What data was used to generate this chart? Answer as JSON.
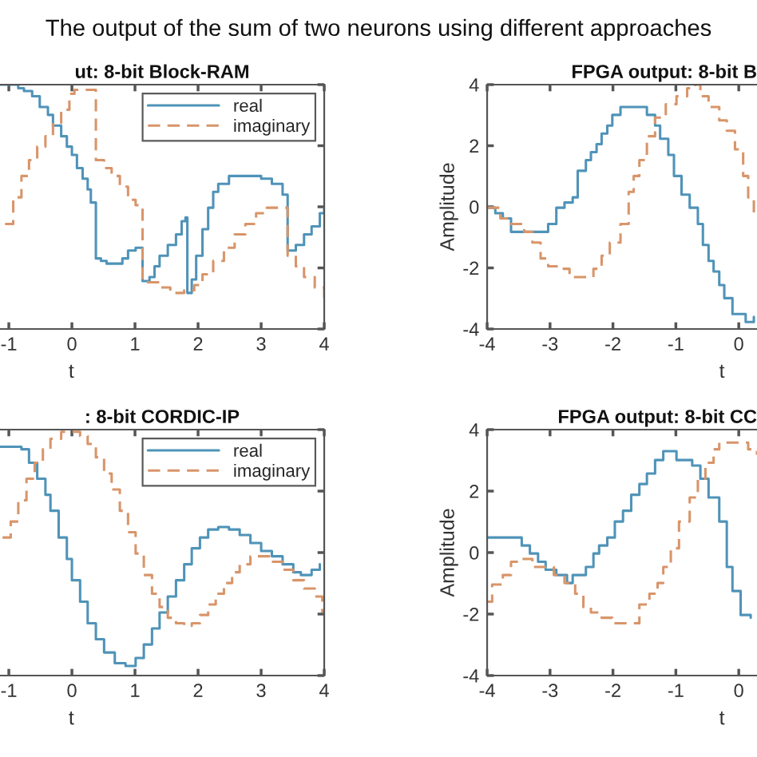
{
  "chart_data": [
    {
      "type": "step",
      "title": "ut: 8-bit Block-RAM",
      "xlabel": "t",
      "annotations": [
        "The output of the sum of two neurons using different approaches"
      ],
      "xlim": [
        -1.14,
        4
      ],
      "ylim": [
        -4,
        4
      ],
      "xticks": [
        -1,
        0,
        1,
        2,
        3,
        4
      ],
      "yticks": [
        {
          "value": -4,
          "label": null
        },
        {
          "value": -2,
          "label": null
        },
        {
          "value": 0,
          "label": null
        },
        {
          "value": 2,
          "label": null
        },
        {
          "value": 4,
          "label": null
        }
      ],
      "tick_labels": "x",
      "legend": "top right",
      "series": [
        {
          "name": "real",
          "color": "#4f93b8",
          "line_style": "solid",
          "x": [
            -1.14,
            -0.85,
            -0.76,
            -0.63,
            -0.51,
            -0.38,
            -0.3,
            -0.17,
            -0.08,
            0,
            0.08,
            0.17,
            0.25,
            0.3,
            0.38,
            0.46,
            0.55,
            0.8,
            0.89,
            1.01,
            1.12,
            1.23,
            1.31,
            1.39,
            1.52,
            1.65,
            1.74,
            1.8,
            1.83,
            1.9,
            1.97,
            2.07,
            2.16,
            2.24,
            2.32,
            2.49,
            2.83,
            3.0,
            3.17,
            3.34,
            3.42,
            3.55,
            3.68,
            3.8,
            3.93,
            4.0
          ],
          "values": [
            4.0,
            3.88,
            3.79,
            3.62,
            3.27,
            3.01,
            2.66,
            2.31,
            1.97,
            1.7,
            1.27,
            0.92,
            0.57,
            0.14,
            -1.69,
            -1.77,
            -1.86,
            -1.69,
            -1.43,
            -1.34,
            -2.43,
            -2.3,
            -1.95,
            -1.6,
            -1.25,
            -0.9,
            -0.47,
            -0.35,
            -2.82,
            -2.38,
            -1.6,
            -0.73,
            -0.03,
            0.49,
            0.75,
            1.01,
            1.01,
            0.92,
            0.75,
            0.4,
            -1.43,
            -1.25,
            -0.9,
            -0.64,
            -0.21,
            -0.03
          ]
        },
        {
          "name": "imaginary",
          "color": "#d8956a",
          "line_style": "dashed",
          "x": [
            -1.06,
            -0.93,
            -0.8,
            -0.68,
            -0.55,
            -0.42,
            -0.3,
            -0.17,
            -0.04,
            0.04,
            0.38,
            0.51,
            0.63,
            0.76,
            0.89,
            1.01,
            1.12,
            1.39,
            1.56,
            1.78,
            1.94,
            2.07,
            2.24,
            2.41,
            2.58,
            2.75,
            2.92,
            3.09,
            3.42,
            3.55,
            3.68,
            3.85,
            4.0
          ],
          "values": [
            -0.56,
            0.31,
            1.01,
            1.53,
            1.97,
            2.31,
            2.75,
            3.18,
            3.7,
            3.83,
            1.53,
            1.27,
            1.01,
            0.66,
            0.23,
            0.05,
            -2.47,
            -2.64,
            -2.82,
            -2.73,
            -2.56,
            -2.21,
            -1.77,
            -1.34,
            -0.9,
            -0.56,
            -0.21,
            -0.03,
            -1.6,
            -1.95,
            -2.3,
            -2.64,
            -3.08
          ]
        }
      ]
    },
    {
      "type": "step",
      "title": "FPGA output: 8-bit B",
      "xlabel": "t",
      "ylabel": "Amplitude",
      "xlim": [
        -4,
        0.29
      ],
      "ylim": [
        -4,
        4
      ],
      "xticks": [
        -4,
        -3,
        -2,
        -1,
        0
      ],
      "yticks": [
        -4,
        -2,
        0,
        2,
        4
      ],
      "series": [
        {
          "color": "#4f93b8",
          "line_style": "solid",
          "x": [
            -4,
            -3.87,
            -3.75,
            -3.62,
            -3.03,
            -2.9,
            -2.77,
            -2.64,
            -2.56,
            -2.43,
            -2.35,
            -2.26,
            -2.18,
            -2.09,
            -2.01,
            -1.88,
            -1.54,
            -1.46,
            -1.33,
            -1.25,
            -1.12,
            -1.03,
            -0.91,
            -0.78,
            -0.65,
            -0.57,
            -0.48,
            -0.4,
            -0.31,
            -0.23,
            -0.1,
            0.11,
            0.24
          ],
          "values": [
            -0.03,
            -0.21,
            -0.38,
            -0.82,
            -0.56,
            -0.03,
            0.14,
            0.31,
            1.18,
            1.53,
            1.79,
            2.05,
            2.4,
            2.66,
            3.01,
            3.27,
            3.27,
            3.01,
            2.66,
            2.23,
            1.7,
            1.01,
            0.4,
            -0.03,
            -0.56,
            -1.25,
            -1.77,
            -2.12,
            -2.56,
            -2.99,
            -3.51,
            -3.77,
            -3.6
          ]
        },
        {
          "color": "#d8956a",
          "line_style": "dashed",
          "x": [
            -4,
            -3.79,
            -3.62,
            -3.41,
            -3.28,
            -3.15,
            -3.03,
            -2.86,
            -2.69,
            -2.43,
            -2.31,
            -2.18,
            -2.05,
            -1.88,
            -1.75,
            -1.67,
            -1.58,
            -1.46,
            -1.33,
            -1.16,
            -0.99,
            -0.82,
            -0.69,
            -0.61,
            -0.48,
            -0.31,
            -0.19,
            -0.06,
            0.07,
            0.15,
            0.24
          ],
          "values": [
            -0.03,
            -0.38,
            -0.56,
            -0.82,
            -1.17,
            -1.69,
            -1.95,
            -2.03,
            -2.3,
            -2.3,
            -2.03,
            -1.6,
            -1.17,
            -0.56,
            0.49,
            1.01,
            1.53,
            2.31,
            2.92,
            3.36,
            3.62,
            3.88,
            4.0,
            3.62,
            3.27,
            2.83,
            2.49,
            1.88,
            1.01,
            0.31,
            -0.21
          ]
        }
      ]
    },
    {
      "type": "step",
      "title": ": 8-bit CORDIC-IP",
      "xlabel": "t",
      "xlim": [
        -1.14,
        4
      ],
      "ylim": [
        -4,
        4
      ],
      "xticks": [
        -1,
        0,
        1,
        2,
        3,
        4
      ],
      "yticks": [
        {
          "value": -4,
          "label": null
        },
        {
          "value": -2,
          "label": null
        },
        {
          "value": 0,
          "label": null
        },
        {
          "value": 2,
          "label": null
        },
        {
          "value": 4,
          "label": null
        }
      ],
      "tick_labels": "x",
      "legend": "top right",
      "series": [
        {
          "name": "real",
          "color": "#4f93b8",
          "line_style": "solid",
          "x": [
            -1.14,
            -0.8,
            -0.68,
            -0.55,
            -0.42,
            -0.34,
            -0.21,
            -0.08,
            0,
            0.13,
            0.25,
            0.38,
            0.51,
            0.68,
            0.85,
            1.01,
            1.14,
            1.27,
            1.39,
            1.52,
            1.65,
            1.78,
            1.9,
            2.03,
            2.16,
            2.32,
            2.49,
            2.66,
            2.83,
            3.0,
            3.17,
            3.34,
            3.51,
            3.63,
            3.8,
            3.93
          ],
          "values": [
            3.44,
            3.36,
            2.92,
            2.4,
            1.88,
            1.36,
            0.49,
            -0.21,
            -0.9,
            -1.6,
            -2.3,
            -2.82,
            -3.25,
            -3.6,
            -3.69,
            -3.43,
            -2.99,
            -2.47,
            -1.95,
            -1.43,
            -0.9,
            -0.38,
            0.14,
            0.49,
            0.75,
            0.83,
            0.75,
            0.57,
            0.31,
            0.05,
            -0.12,
            -0.38,
            -0.64,
            -0.73,
            -0.56,
            -0.38
          ]
        },
        {
          "name": "imaginary",
          "color": "#d8956a",
          "line_style": "dashed",
          "x": [
            -1.1,
            -0.97,
            -0.85,
            -0.72,
            -0.59,
            -0.46,
            -0.34,
            -0.17,
            0,
            0.13,
            0.25,
            0.38,
            0.51,
            0.63,
            0.76,
            0.89,
            1.01,
            1.14,
            1.27,
            1.39,
            1.52,
            1.65,
            1.78,
            1.9,
            2.03,
            2.16,
            2.28,
            2.41,
            2.54,
            2.66,
            2.83,
            3.0,
            3.17,
            3.34,
            3.51,
            3.68,
            3.85,
            3.97
          ],
          "values": [
            0.49,
            1.01,
            1.7,
            2.4,
            2.92,
            3.36,
            3.7,
            3.93,
            3.93,
            3.79,
            3.53,
            3.1,
            2.57,
            2.05,
            1.36,
            0.66,
            -0.03,
            -0.73,
            -1.34,
            -1.77,
            -2.12,
            -2.3,
            -2.38,
            -2.3,
            -2.03,
            -1.69,
            -1.34,
            -0.99,
            -0.64,
            -0.38,
            -0.12,
            -0.12,
            -0.3,
            -0.56,
            -0.9,
            -1.17,
            -1.43,
            -1.95
          ]
        }
      ]
    },
    {
      "type": "step",
      "title": "FPGA output: 8-bit CC",
      "xlabel": "t",
      "ylabel": "Amplitude",
      "xlim": [
        -4,
        0.29
      ],
      "ylim": [
        -4,
        4
      ],
      "xticks": [
        -4,
        -3,
        -2,
        -1,
        0
      ],
      "yticks": [
        -4,
        -2,
        0,
        2,
        4
      ],
      "series": [
        {
          "color": "#4f93b8",
          "line_style": "solid",
          "x": [
            -4,
            -3.53,
            -3.45,
            -3.32,
            -3.19,
            -3.07,
            -2.9,
            -2.73,
            -2.64,
            -2.43,
            -2.31,
            -2.22,
            -2.09,
            -1.97,
            -1.84,
            -1.71,
            -1.58,
            -1.46,
            -1.33,
            -1.2,
            -0.99,
            -0.74,
            -0.61,
            -0.48,
            -0.31,
            -0.19,
            -0.1,
            0.03,
            0.19
          ],
          "values": [
            0.49,
            0.49,
            0.23,
            -0.03,
            -0.3,
            -0.56,
            -0.73,
            -0.99,
            -0.73,
            -0.47,
            -0.03,
            0.23,
            0.49,
            1.01,
            1.36,
            1.88,
            2.23,
            2.57,
            3.01,
            3.3,
            3.01,
            2.83,
            2.4,
            1.79,
            1.01,
            -0.47,
            -1.25,
            -2.03,
            -2.12
          ]
        },
        {
          "color": "#d8956a",
          "line_style": "dashed",
          "x": [
            -4,
            -3.92,
            -3.75,
            -3.62,
            -3.45,
            -3.28,
            -2.94,
            -2.77,
            -2.6,
            -2.47,
            -2.35,
            -2.18,
            -2.01,
            -1.63,
            -1.58,
            -1.42,
            -1.29,
            -1.2,
            -1.08,
            -0.95,
            -0.78,
            -0.65,
            -0.53,
            -0.4,
            -0.31,
            0.03,
            0.15,
            0.29
          ],
          "values": [
            -1.6,
            -1.04,
            -0.73,
            -0.3,
            -0.21,
            -0.47,
            -0.73,
            -0.99,
            -1.34,
            -1.77,
            -1.95,
            -2.12,
            -2.3,
            -2.3,
            -1.69,
            -1.34,
            -0.99,
            -0.47,
            0.14,
            1.01,
            1.79,
            2.4,
            2.92,
            3.36,
            3.58,
            3.58,
            3.36,
            3.18
          ]
        }
      ]
    }
  ]
}
